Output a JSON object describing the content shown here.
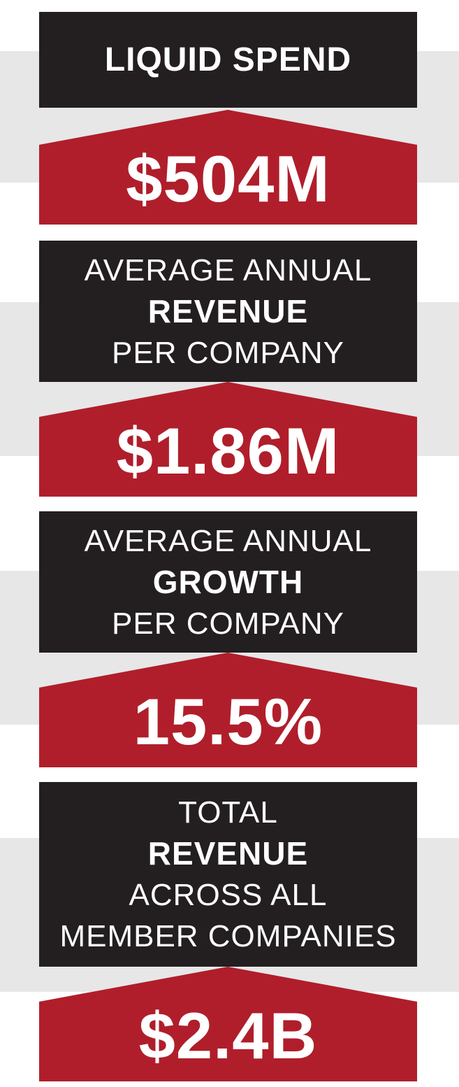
{
  "colors": {
    "dark": "#231f20",
    "accent": "#b01e2b",
    "band": "#e7e7e7"
  },
  "blocks": [
    {
      "label_lines": [
        {
          "text": "LIQUID SPEND",
          "bold": true
        }
      ],
      "value": "$504M"
    },
    {
      "label_lines": [
        {
          "text": "AVERAGE ANNUAL",
          "bold": false
        },
        {
          "text": "REVENUE",
          "bold": true
        },
        {
          "text": "PER COMPANY",
          "bold": false
        }
      ],
      "value": "$1.86M"
    },
    {
      "label_lines": [
        {
          "text": "AVERAGE ANNUAL",
          "bold": false
        },
        {
          "text": "GROWTH",
          "bold": true
        },
        {
          "text": "PER COMPANY",
          "bold": false
        }
      ],
      "value": "15.5%"
    },
    {
      "label_lines": [
        {
          "text": "TOTAL",
          "bold": false
        },
        {
          "text": "REVENUE",
          "bold": true
        },
        {
          "text": "ACROSS ALL",
          "bold": false
        },
        {
          "text": "MEMBER COMPANIES",
          "bold": false
        }
      ],
      "value": "$2.4B"
    }
  ]
}
